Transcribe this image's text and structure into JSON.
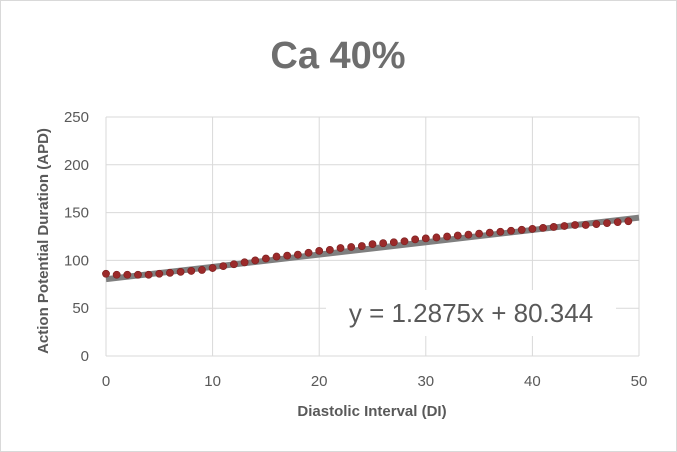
{
  "chart_data": {
    "type": "scatter",
    "title": "Ca 40%",
    "xlabel": "Diastolic Interval (DI)",
    "ylabel": "Action Potential Duration (APD)",
    "xlim": [
      0,
      50
    ],
    "ylim": [
      0,
      250
    ],
    "xticks": [
      0,
      10,
      20,
      30,
      40,
      50
    ],
    "yticks": [
      0,
      50,
      100,
      150,
      200,
      250
    ],
    "grid": true,
    "series": [
      {
        "marker_color": "#9b2a2a",
        "x": [
          0,
          1,
          2,
          3,
          4,
          5,
          6,
          7,
          8,
          9,
          10,
          11,
          12,
          13,
          14,
          15,
          16,
          17,
          18,
          19,
          20,
          21,
          22,
          23,
          24,
          25,
          26,
          27,
          28,
          29,
          30,
          31,
          32,
          33,
          34,
          35,
          36,
          37,
          38,
          39,
          40,
          41,
          42,
          43,
          44,
          45,
          46,
          47,
          48,
          49
        ],
        "y": [
          86,
          85,
          85,
          85,
          85,
          86,
          87,
          88,
          89,
          90,
          92,
          94,
          96,
          98,
          100,
          102,
          104,
          105,
          106,
          108,
          110,
          111,
          113,
          114,
          115,
          117,
          118,
          119,
          120,
          122,
          123,
          124,
          125,
          126,
          127,
          128,
          129,
          130,
          131,
          132,
          133,
          134,
          135,
          136,
          137,
          137,
          138,
          139,
          140,
          141
        ]
      }
    ],
    "trendline": {
      "slope": 1.2875,
      "intercept": 80.344,
      "color": "#7f7f7f",
      "equation_label": "y = 1.2875x + 80.344"
    }
  }
}
